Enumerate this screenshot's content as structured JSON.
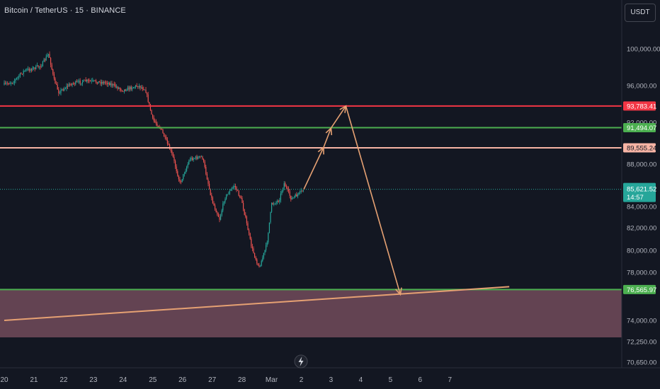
{
  "header": {
    "title": "Bitcoin / TetherUS · 15 · BINANCE",
    "currency_button": "USDT"
  },
  "colors": {
    "background": "#131722",
    "candle_up": "#26a69a",
    "candle_down": "#ef5350",
    "resistance_red": "#f23645",
    "support_green": "#4caf50",
    "salmon_line": "#f7b4a5",
    "arrow_orange": "#e6a173",
    "zone_fill": "#7a5060"
  },
  "icons": {
    "goto_realtime": "lightning-icon"
  },
  "chart_data": {
    "type": "candlestick",
    "title": "Bitcoin / TetherUS · 15 · BINANCE",
    "xlabel": "",
    "ylabel": "",
    "x_ticks": [
      "20",
      "21",
      "22",
      "23",
      "24",
      "25",
      "26",
      "27",
      "28",
      "Mar",
      "2",
      "3",
      "4",
      "5",
      "6",
      "7"
    ],
    "y_ticks": [
      "100,000.00",
      "96,000.00",
      "92,000.00",
      "88,000.00",
      "84,000.00",
      "82,000.00",
      "80,000.00",
      "78,000.00",
      "74,000.00",
      "72,250.00",
      "70,650.00"
    ],
    "price_path": [
      {
        "date": "2025-02-20 00:00",
        "price": 96100
      },
      {
        "date": "2025-02-20 08:00",
        "price": 96500
      },
      {
        "date": "2025-02-20 16:00",
        "price": 97600
      },
      {
        "date": "2025-02-21 00:00",
        "price": 97900
      },
      {
        "date": "2025-02-21 06:00",
        "price": 98200
      },
      {
        "date": "2025-02-21 12:00",
        "price": 99500
      },
      {
        "date": "2025-02-21 16:00",
        "price": 96700
      },
      {
        "date": "2025-02-21 20:00",
        "price": 95300
      },
      {
        "date": "2025-02-22 06:00",
        "price": 96200
      },
      {
        "date": "2025-02-22 18:00",
        "price": 96500
      },
      {
        "date": "2025-02-23 12:00",
        "price": 96300
      },
      {
        "date": "2025-02-24 00:00",
        "price": 95500
      },
      {
        "date": "2025-02-24 12:00",
        "price": 96000
      },
      {
        "date": "2025-02-24 18:00",
        "price": 95600
      },
      {
        "date": "2025-02-25 00:00",
        "price": 92300
      },
      {
        "date": "2025-02-25 06:00",
        "price": 91500
      },
      {
        "date": "2025-02-25 16:00",
        "price": 88800
      },
      {
        "date": "2025-02-25 22:00",
        "price": 86200
      },
      {
        "date": "2025-02-26 06:00",
        "price": 88500
      },
      {
        "date": "2025-02-26 16:00",
        "price": 88700
      },
      {
        "date": "2025-02-27 00:00",
        "price": 84500
      },
      {
        "date": "2025-02-27 06:00",
        "price": 82800
      },
      {
        "date": "2025-02-27 10:00",
        "price": 84800
      },
      {
        "date": "2025-02-27 18:00",
        "price": 86000
      },
      {
        "date": "2025-02-28 00:00",
        "price": 84500
      },
      {
        "date": "2025-02-28 08:00",
        "price": 80200
      },
      {
        "date": "2025-02-28 14:00",
        "price": 78400
      },
      {
        "date": "2025-02-28 20:00",
        "price": 80500
      },
      {
        "date": "2025-03-01 00:00",
        "price": 84200
      },
      {
        "date": "2025-03-01 06:00",
        "price": 84600
      },
      {
        "date": "2025-03-01 10:00",
        "price": 86200
      },
      {
        "date": "2025-03-01 16:00",
        "price": 84700
      },
      {
        "date": "2025-03-01 22:00",
        "price": 85200
      },
      {
        "date": "2025-03-02 02:00",
        "price": 85620
      }
    ],
    "horizontal_levels": [
      {
        "price": 93783.41,
        "label": "93,783.41",
        "color": "#f23645"
      },
      {
        "price": 91494.07,
        "label": "91,494.07",
        "color": "#4caf50"
      },
      {
        "price": 89555.24,
        "label": "89,555.24",
        "color": "#f7b4a5"
      },
      {
        "price": 76565.97,
        "label": "76,565.97",
        "color": "#4caf50"
      }
    ],
    "current_price": {
      "price": 85621.52,
      "label": "85,621.52",
      "countdown": "14:57",
      "color": "#26a69a"
    },
    "projection_path": [
      {
        "date": "2025-03-02 02:00",
        "price": 85620
      },
      {
        "date": "2025-03-02 18:00",
        "price": 89600
      },
      {
        "date": "2025-03-03 00:00",
        "price": 91450
      },
      {
        "date": "2025-03-03 12:00",
        "price": 93780
      },
      {
        "date": "2025-03-05 08:00",
        "price": 76150
      }
    ],
    "trendline": [
      {
        "date": "2025-02-20 00:00",
        "price": 74000
      },
      {
        "date": "2025-03-09 00:00",
        "price": 76800
      }
    ],
    "zone": {
      "top": 76565.97,
      "bottom": 72600
    }
  }
}
